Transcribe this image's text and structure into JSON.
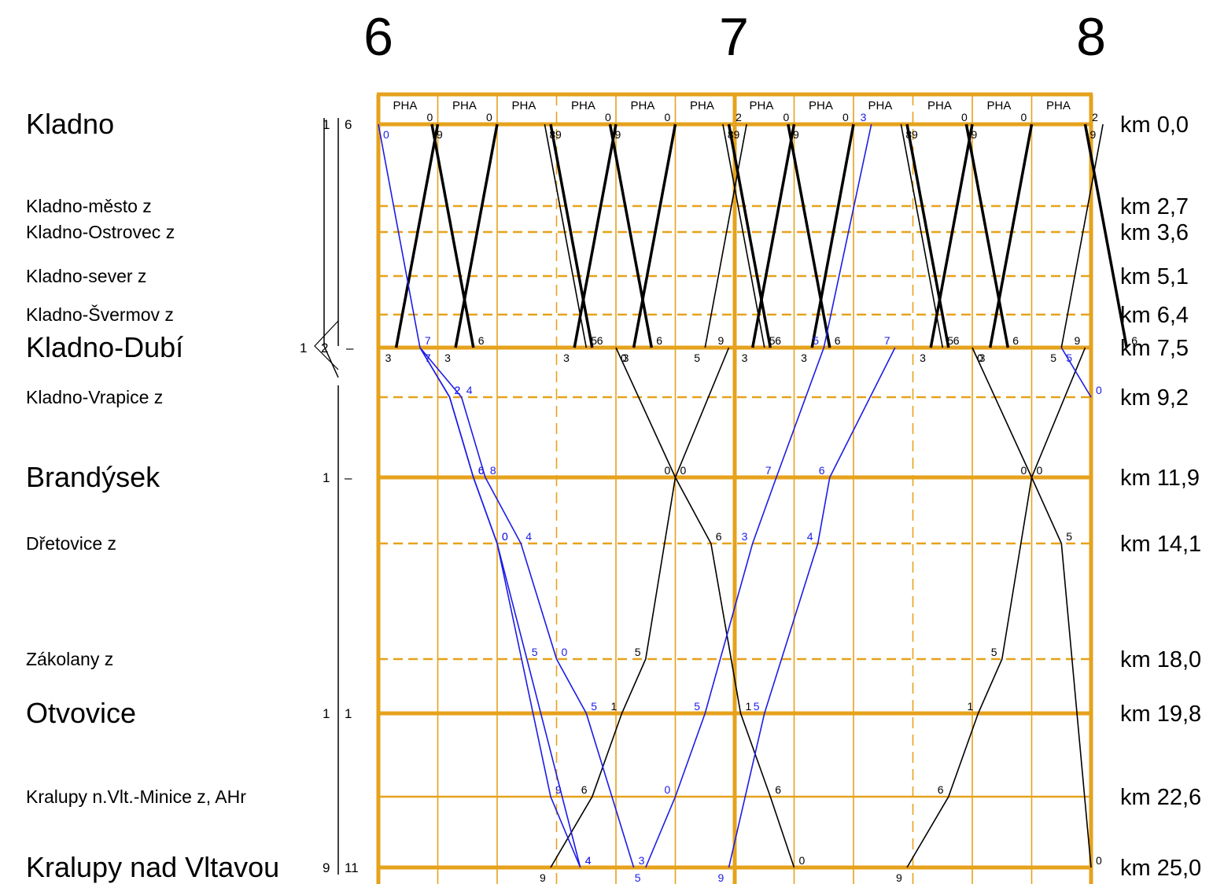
{
  "hours": [
    "6",
    "7",
    "8"
  ],
  "header_code": "PHA",
  "stations": [
    {
      "name": "Kladno",
      "km": "km 0,0",
      "major": true,
      "stop": true,
      "tracks": [
        "1",
        "6"
      ]
    },
    {
      "name": "Kladno-město z",
      "km": "km 2,7",
      "major": false,
      "stop": false,
      "tracks": []
    },
    {
      "name": "Kladno-Ostrovec z",
      "km": "km 3,6",
      "major": false,
      "stop": false,
      "tracks": []
    },
    {
      "name": "Kladno-sever z",
      "km": "km 5,1",
      "major": false,
      "stop": false,
      "tracks": []
    },
    {
      "name": "Kladno-Švermov z",
      "km": "km 6,4",
      "major": false,
      "stop": false,
      "tracks": []
    },
    {
      "name": "Kladno-Dubí",
      "km": "km 7,5",
      "major": true,
      "stop": true,
      "tracks": [
        "1",
        "2",
        "–"
      ]
    },
    {
      "name": "Kladno-Vrapice z",
      "km": "km 9,2",
      "major": false,
      "stop": false,
      "tracks": []
    },
    {
      "name": "Brandýsek",
      "km": "km 11,9",
      "major": true,
      "stop": true,
      "tracks": [
        "1",
        "–"
      ]
    },
    {
      "name": "Dřetovice z",
      "km": "km 14,1",
      "major": false,
      "stop": false,
      "tracks": []
    },
    {
      "name": "Zákolany z",
      "km": "km 18,0",
      "major": false,
      "stop": false,
      "tracks": []
    },
    {
      "name": "Otvovice",
      "km": "km 19,8",
      "major": true,
      "stop": true,
      "tracks": [
        "1",
        "1"
      ]
    },
    {
      "name": "Kralupy n.Vlt.-Minice z, AHr",
      "km": "km 22,6",
      "major": false,
      "stop": true,
      "tracks": []
    },
    {
      "name": "Kralupy nad Vltavou",
      "km": "km 25,0",
      "major": true,
      "stop": true,
      "tracks": [
        "9",
        "11"
      ]
    }
  ],
  "chart_data": {
    "type": "train graph (time-distance diagram)",
    "time_axis": {
      "start": "6:00",
      "end": "8:00",
      "hour_labels": [
        "6",
        "7",
        "8"
      ],
      "minor_step_min": 10
    },
    "distance_axis_km": [
      0.0,
      2.7,
      3.6,
      5.1,
      6.4,
      7.5,
      9.2,
      11.9,
      14.1,
      18.0,
      19.8,
      22.6,
      25.0
    ],
    "colors": {
      "grid": "#e6a21c",
      "regular_train": "#000000",
      "added_train": "#1c1ce6"
    },
    "series": [
      {
        "style": "bold",
        "direction": "down",
        "points": [
          [
            "6:09",
            0.0
          ],
          [
            "6:16",
            7.5
          ]
        ]
      },
      {
        "style": "bold",
        "direction": "down",
        "points": [
          [
            "6:29",
            0.0
          ],
          [
            "6:36",
            7.5
          ]
        ]
      },
      {
        "style": "bold",
        "direction": "down",
        "points": [
          [
            "6:39",
            0.0
          ],
          [
            "6:46",
            7.5
          ]
        ]
      },
      {
        "style": "bold",
        "direction": "down",
        "points": [
          [
            "6:59",
            0.0
          ],
          [
            "7:06",
            7.5
          ]
        ]
      },
      {
        "style": "bold",
        "direction": "down",
        "points": [
          [
            "7:09",
            0.0
          ],
          [
            "7:16",
            7.5
          ]
        ]
      },
      {
        "style": "bold",
        "direction": "down",
        "points": [
          [
            "7:29",
            0.0
          ],
          [
            "7:36",
            7.5
          ]
        ]
      },
      {
        "style": "bold",
        "direction": "down",
        "points": [
          [
            "7:39",
            0.0
          ],
          [
            "7:46",
            7.5
          ]
        ]
      },
      {
        "style": "bold",
        "direction": "down",
        "points": [
          [
            "7:59",
            0.0
          ],
          [
            "8:06",
            7.5
          ]
        ]
      },
      {
        "style": "bold",
        "direction": "up",
        "points": [
          [
            "6:03",
            7.5
          ],
          [
            "6:10",
            0.0
          ]
        ]
      },
      {
        "style": "bold",
        "direction": "up",
        "points": [
          [
            "6:13",
            7.5
          ],
          [
            "6:20",
            0.0
          ]
        ]
      },
      {
        "style": "bold",
        "direction": "up",
        "points": [
          [
            "6:33",
            7.5
          ],
          [
            "6:40",
            0.0
          ]
        ]
      },
      {
        "style": "bold",
        "direction": "up",
        "points": [
          [
            "6:43",
            7.5
          ],
          [
            "6:50",
            0.0
          ]
        ]
      },
      {
        "style": "bold",
        "direction": "up",
        "points": [
          [
            "7:03",
            7.5
          ],
          [
            "7:10",
            0.0
          ]
        ]
      },
      {
        "style": "bold",
        "direction": "up",
        "points": [
          [
            "7:13",
            7.5
          ],
          [
            "7:20",
            0.0
          ]
        ]
      },
      {
        "style": "bold",
        "direction": "up",
        "points": [
          [
            "7:33",
            7.5
          ],
          [
            "7:40",
            0.0
          ]
        ]
      },
      {
        "style": "bold",
        "direction": "up",
        "points": [
          [
            "7:43",
            7.5
          ],
          [
            "7:50",
            0.0
          ]
        ]
      },
      {
        "style": "thin",
        "direction": "down",
        "points": [
          [
            "6:28",
            0.0
          ],
          [
            "6:35",
            7.5
          ]
        ]
      },
      {
        "style": "thin",
        "direction": "down",
        "points": [
          [
            "6:58",
            0.0
          ],
          [
            "7:05",
            7.5
          ]
        ]
      },
      {
        "style": "thin",
        "direction": "down",
        "points": [
          [
            "7:28",
            0.0
          ],
          [
            "7:35",
            7.5
          ]
        ]
      },
      {
        "style": "thin",
        "direction": "up",
        "points": [
          [
            "6:55",
            7.5
          ],
          [
            "7:02",
            0.0
          ]
        ]
      },
      {
        "style": "thin",
        "direction": "up",
        "points": [
          [
            "7:55",
            7.5
          ],
          [
            "8:02",
            0.0
          ]
        ]
      },
      {
        "style": "thin",
        "direction": "down",
        "points": [
          [
            "6:40",
            7.5
          ],
          [
            "6:50",
            11.9
          ],
          [
            "6:56",
            14.1
          ],
          [
            "7:01",
            19.8
          ],
          [
            "7:06",
            22.6
          ],
          [
            "7:10",
            25.0
          ]
        ]
      },
      {
        "style": "thin",
        "direction": "up",
        "points": [
          [
            "6:29",
            25.0
          ],
          [
            "6:36",
            22.6
          ],
          [
            "6:41",
            19.8
          ],
          [
            "6:45",
            18.0
          ],
          [
            "6:50",
            11.9
          ],
          [
            "6:59",
            7.5
          ]
        ]
      },
      {
        "style": "thin",
        "direction": "down",
        "points": [
          [
            "7:40",
            7.5
          ],
          [
            "7:50",
            11.9
          ],
          [
            "7:55",
            14.1
          ],
          [
            "8:00",
            25.0
          ]
        ]
      },
      {
        "style": "thin",
        "direction": "up",
        "points": [
          [
            "7:29",
            25.0
          ],
          [
            "7:36",
            22.6
          ],
          [
            "7:41",
            19.8
          ],
          [
            "7:45",
            18.0
          ],
          [
            "7:50",
            11.9
          ],
          [
            "7:59",
            7.5
          ]
        ]
      },
      {
        "style": "added",
        "direction": "down",
        "points": [
          [
            "6:00",
            0.0
          ],
          [
            "6:07",
            7.5
          ],
          [
            "6:12",
            9.2
          ],
          [
            "6:16",
            11.9
          ],
          [
            "6:20",
            14.1
          ],
          [
            "6:29",
            22.6
          ],
          [
            "6:34",
            25.0
          ]
        ]
      },
      {
        "style": "added",
        "direction": "down",
        "points": [
          [
            "6:07",
            7.5
          ],
          [
            "6:12",
            9.2
          ],
          [
            "6:16",
            11.9
          ],
          [
            "6:20",
            14.1
          ],
          [
            "6:25",
            18.0
          ],
          [
            "6:34",
            25.0
          ]
        ]
      },
      {
        "style": "added",
        "direction": "down",
        "points": [
          [
            "6:07",
            7.5
          ],
          [
            "6:14",
            9.2
          ],
          [
            "6:18",
            11.9
          ],
          [
            "6:24",
            14.1
          ],
          [
            "6:30",
            18.0
          ],
          [
            "6:35",
            19.8
          ],
          [
            "6:43",
            25.0
          ]
        ]
      },
      {
        "style": "added",
        "direction": "up",
        "points": [
          [
            "6:45",
            25.0
          ],
          [
            "6:50",
            22.6
          ],
          [
            "6:55",
            19.8
          ],
          [
            "7:03",
            14.1
          ],
          [
            "7:07",
            11.9
          ],
          [
            "7:15",
            7.5
          ],
          [
            "7:23",
            0.0
          ]
        ]
      },
      {
        "style": "added",
        "direction": "up",
        "points": [
          [
            "6:59",
            25.0
          ],
          [
            "7:05",
            19.8
          ],
          [
            "7:14",
            14.1
          ],
          [
            "7:16",
            11.9
          ],
          [
            "7:27",
            7.5
          ]
        ]
      },
      {
        "style": "added",
        "direction": "down",
        "points": [
          [
            "7:55",
            7.5
          ],
          [
            "8:00",
            9.2
          ]
        ]
      }
    ]
  }
}
